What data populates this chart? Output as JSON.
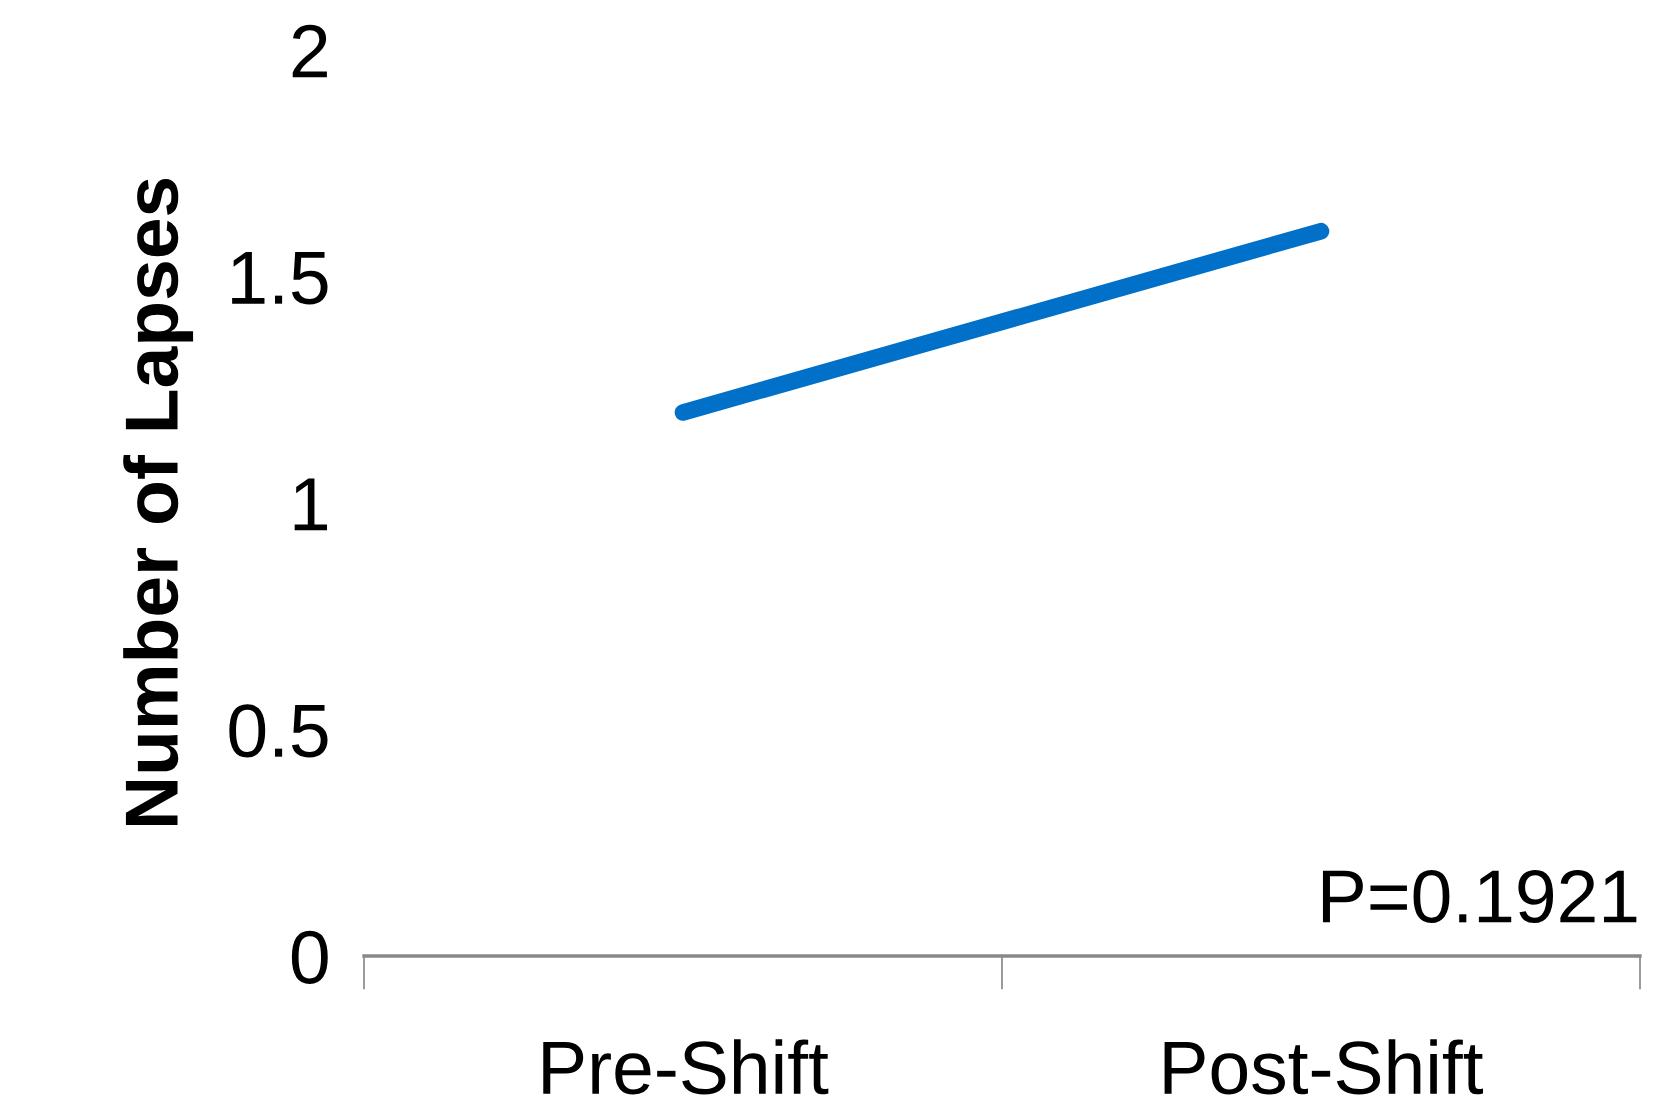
{
  "chart_data": {
    "type": "line",
    "ylabel": "Number of Lapses",
    "categories": [
      "Pre-Shift",
      "Post-Shift"
    ],
    "series": [
      {
        "color": "#0070c8",
        "values": [
          1.2,
          1.6
        ]
      }
    ],
    "ylim": [
      0,
      2
    ],
    "yticks": [
      0,
      0.5,
      1,
      1.5,
      2
    ],
    "annotations": [
      "P=0.1921"
    ],
    "grid": false,
    "legend": false,
    "marker": "none",
    "line_style": "solid"
  }
}
